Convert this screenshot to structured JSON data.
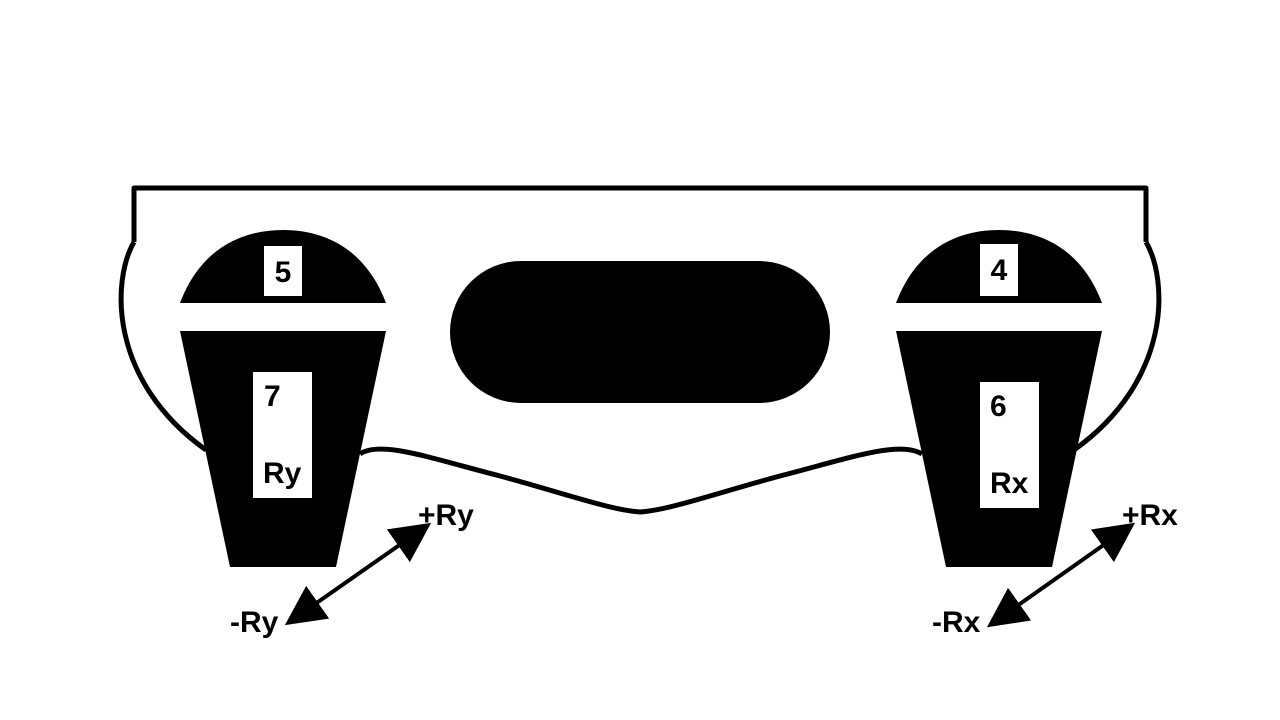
{
  "controller": {
    "left_bumper_label": "5",
    "right_bumper_label": "4",
    "left_trigger": {
      "number": "7",
      "axis": "Ry"
    },
    "right_trigger": {
      "number": "6",
      "axis": "Rx"
    }
  },
  "arrows": {
    "left": {
      "plus": "+Ry",
      "minus": "-Ry"
    },
    "right": {
      "plus": "+Rx",
      "minus": "-Rx"
    }
  },
  "colors": {
    "ink": "#000000",
    "paper": "#ffffff"
  }
}
